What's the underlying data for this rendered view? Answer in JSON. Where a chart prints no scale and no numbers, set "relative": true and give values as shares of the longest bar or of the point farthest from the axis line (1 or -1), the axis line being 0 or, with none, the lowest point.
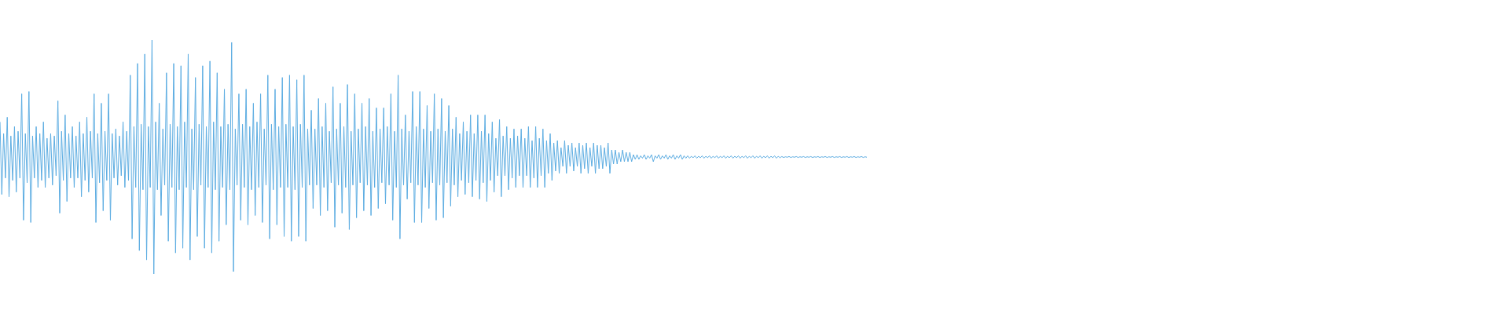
{
  "chart_data": {
    "type": "line",
    "relative": true,
    "color": "#5dade2",
    "categories": [
      null,
      null,
      null,
      null,
      null,
      null,
      null,
      null,
      null,
      null,
      null,
      null,
      null,
      null,
      null,
      null,
      null,
      null,
      null,
      null,
      null,
      null,
      null,
      null,
      null,
      null,
      null,
      null,
      null,
      null,
      null,
      null,
      null,
      null,
      null,
      null,
      null,
      null,
      null,
      null,
      null,
      null,
      null,
      null,
      null,
      null,
      null,
      null,
      null,
      null,
      null,
      null,
      null,
      null,
      null,
      null,
      null,
      null,
      null,
      null,
      null,
      null,
      null,
      null,
      null,
      null,
      null,
      null,
      null,
      null,
      null,
      null,
      null,
      null,
      null,
      null,
      null,
      null,
      null,
      null,
      null,
      null,
      null,
      null,
      null,
      null,
      null,
      null,
      null,
      null,
      null,
      null,
      null,
      null,
      null,
      null,
      null,
      null,
      null,
      null,
      null,
      null,
      null,
      null,
      null,
      null,
      null,
      null,
      null,
      null,
      null,
      null,
      null,
      null,
      null,
      null,
      null,
      null,
      null,
      null,
      null,
      null,
      null,
      null,
      null,
      null,
      null,
      null,
      null,
      null,
      null,
      null,
      null,
      null,
      null,
      null,
      null,
      null,
      null,
      null,
      null,
      null,
      null,
      null,
      null,
      null,
      null,
      null,
      null,
      null,
      null,
      null,
      null,
      null,
      null,
      null,
      null,
      null,
      null,
      null,
      null,
      null,
      null,
      null,
      null,
      null,
      null,
      null,
      null,
      null,
      null,
      null,
      null,
      null,
      null,
      null,
      null,
      null,
      null,
      null,
      null,
      null,
      null,
      null,
      null,
      null,
      null,
      null,
      null,
      null,
      null,
      null,
      null,
      null,
      null,
      null,
      null,
      null,
      null,
      null,
      null,
      null,
      null,
      null,
      null,
      null,
      null,
      null,
      null,
      null,
      null,
      null,
      null,
      null,
      null,
      null,
      null,
      null,
      null,
      null,
      null,
      null,
      null,
      null,
      null,
      null,
      null,
      null,
      null,
      null,
      null,
      null,
      null,
      null,
      null,
      null,
      null,
      null,
      null,
      null,
      null,
      null,
      null,
      null,
      null,
      null,
      null,
      null,
      null,
      null,
      null,
      null,
      null,
      null,
      null,
      null,
      null,
      null,
      null,
      null,
      null,
      null,
      null,
      null,
      null,
      null,
      null,
      null,
      null,
      null,
      null,
      null,
      null,
      null,
      null,
      null,
      null,
      null,
      null,
      null,
      null,
      null,
      null,
      null,
      null,
      null,
      null,
      null,
      null,
      null,
      null,
      null,
      null,
      null,
      null,
      null,
      null,
      null,
      null,
      null,
      null,
      null,
      null,
      null,
      null,
      null,
      null,
      null,
      null,
      null,
      null,
      null,
      null,
      null,
      null,
      null,
      null,
      null,
      null,
      null,
      null,
      null,
      null,
      null,
      null,
      null,
      null,
      null,
      null,
      null,
      null,
      null,
      null,
      null,
      null,
      null,
      null,
      null,
      null,
      null,
      null,
      null,
      null,
      null,
      null,
      null,
      null,
      null,
      null,
      null,
      null,
      null,
      null,
      null,
      null,
      null,
      null,
      null,
      null,
      null,
      null,
      null,
      null,
      null,
      null,
      null,
      null,
      null,
      null,
      null,
      null,
      null,
      null,
      null,
      null,
      null,
      null,
      null,
      null,
      null,
      null,
      null,
      null,
      null,
      null,
      null,
      null,
      null,
      null,
      null,
      null,
      null,
      null,
      null,
      null,
      null,
      null,
      null,
      null,
      null,
      null,
      null,
      null,
      null,
      null,
      null,
      null,
      null,
      null,
      null,
      null,
      null,
      null,
      null,
      null,
      null,
      null,
      null,
      null,
      null,
      null,
      null,
      null,
      null,
      null,
      null,
      null,
      null,
      null,
      null,
      null,
      null,
      null,
      null,
      null,
      null,
      null,
      null,
      null,
      null,
      null,
      null,
      null,
      null,
      null,
      null,
      null,
      null,
      null,
      null,
      null,
      null,
      null,
      null,
      null,
      null,
      null,
      null,
      null,
      null,
      null,
      null,
      null,
      null,
      null,
      null,
      null,
      null,
      null,
      null,
      null,
      null,
      null,
      null,
      null,
      null,
      null,
      null,
      null,
      null
    ],
    "values": [
      0.65,
      0.34,
      0.6,
      0.41,
      0.67,
      0.33,
      0.59,
      0.4,
      0.63,
      0.35,
      0.61,
      0.41,
      0.77,
      0.23,
      0.6,
      0.39,
      0.78,
      0.22,
      0.59,
      0.41,
      0.63,
      0.37,
      0.6,
      0.4,
      0.65,
      0.37,
      0.58,
      0.41,
      0.6,
      0.38,
      0.59,
      0.42,
      0.74,
      0.26,
      0.61,
      0.4,
      0.68,
      0.31,
      0.6,
      0.41,
      0.63,
      0.37,
      0.59,
      0.41,
      0.65,
      0.33,
      0.6,
      0.4,
      0.67,
      0.35,
      0.61,
      0.41,
      0.77,
      0.22,
      0.6,
      0.39,
      0.73,
      0.27,
      0.61,
      0.4,
      0.77,
      0.23,
      0.6,
      0.41,
      0.62,
      0.38,
      0.59,
      0.42,
      0.65,
      0.37,
      0.61,
      0.4,
      0.85,
      0.15,
      0.63,
      0.37,
      0.9,
      0.1,
      0.64,
      0.36,
      0.94,
      0.06,
      0.63,
      0.37,
      1.0,
      0.0,
      0.65,
      0.36,
      0.73,
      0.25,
      0.62,
      0.38,
      0.86,
      0.14,
      0.64,
      0.37,
      0.9,
      0.09,
      0.63,
      0.36,
      0.89,
      0.11,
      0.65,
      0.37,
      0.94,
      0.06,
      0.62,
      0.36,
      0.84,
      0.16,
      0.64,
      0.38,
      0.89,
      0.11,
      0.63,
      0.37,
      0.91,
      0.09,
      0.65,
      0.36,
      0.86,
      0.14,
      0.63,
      0.37,
      0.79,
      0.21,
      0.64,
      0.36,
      0.99,
      0.01,
      0.62,
      0.38,
      0.77,
      0.23,
      0.64,
      0.37,
      0.79,
      0.21,
      0.63,
      0.36,
      0.73,
      0.25,
      0.65,
      0.37,
      0.77,
      0.22,
      0.62,
      0.38,
      0.85,
      0.15,
      0.64,
      0.36,
      0.79,
      0.21,
      0.63,
      0.37,
      0.84,
      0.16,
      0.64,
      0.37,
      0.85,
      0.14,
      0.63,
      0.36,
      0.83,
      0.16,
      0.64,
      0.37,
      0.85,
      0.14,
      0.62,
      0.38,
      0.7,
      0.28,
      0.62,
      0.38,
      0.75,
      0.25,
      0.63,
      0.37,
      0.73,
      0.27,
      0.61,
      0.39,
      0.8,
      0.2,
      0.62,
      0.38,
      0.73,
      0.26,
      0.63,
      0.37,
      0.81,
      0.19,
      0.61,
      0.38,
      0.77,
      0.24,
      0.62,
      0.39,
      0.73,
      0.27,
      0.63,
      0.38,
      0.75,
      0.25,
      0.61,
      0.37,
      0.71,
      0.28,
      0.62,
      0.39,
      0.71,
      0.3,
      0.63,
      0.38,
      0.77,
      0.23,
      0.61,
      0.37,
      0.85,
      0.15,
      0.62,
      0.38,
      0.68,
      0.32,
      0.61,
      0.39,
      0.78,
      0.22,
      0.63,
      0.38,
      0.78,
      0.22,
      0.62,
      0.37,
      0.72,
      0.28,
      0.61,
      0.39,
      0.77,
      0.23,
      0.62,
      0.38,
      0.75,
      0.24,
      0.61,
      0.39,
      0.72,
      0.29,
      0.62,
      0.38,
      0.67,
      0.33,
      0.6,
      0.4,
      0.65,
      0.34,
      0.61,
      0.39,
      0.68,
      0.33,
      0.6,
      0.4,
      0.68,
      0.32,
      0.61,
      0.39,
      0.68,
      0.31,
      0.6,
      0.4,
      0.65,
      0.35,
      0.58,
      0.42,
      0.66,
      0.33,
      0.59,
      0.42,
      0.63,
      0.36,
      0.58,
      0.41,
      0.62,
      0.37,
      0.59,
      0.42,
      0.62,
      0.37,
      0.58,
      0.42,
      0.63,
      0.37,
      0.57,
      0.41,
      0.63,
      0.37,
      0.58,
      0.42,
      0.62,
      0.37,
      0.57,
      0.43,
      0.6,
      0.4,
      0.56,
      0.44,
      0.57,
      0.43,
      0.54,
      0.46,
      0.57,
      0.43,
      0.55,
      0.46,
      0.56,
      0.44,
      0.54,
      0.46,
      0.56,
      0.43,
      0.55,
      0.45,
      0.56,
      0.43,
      0.54,
      0.46,
      0.56,
      0.43,
      0.55,
      0.45,
      0.55,
      0.45,
      0.54,
      0.46,
      0.56,
      0.43,
      0.53,
      0.47,
      0.53,
      0.47,
      0.52,
      0.48,
      0.53,
      0.48,
      0.52,
      0.48,
      0.52,
      0.48,
      0.51,
      0.49,
      0.51,
      0.49,
      0.505,
      0.495,
      0.51,
      0.49,
      0.505,
      0.495,
      0.51,
      0.48,
      0.505,
      0.495,
      0.51,
      0.49,
      0.505,
      0.495,
      0.51,
      0.49,
      0.505,
      0.495,
      0.51,
      0.49,
      0.505,
      0.495,
      0.51,
      0.49,
      0.505,
      0.495,
      0.505,
      0.495,
      0.503,
      0.497,
      0.505,
      0.495,
      0.503,
      0.497,
      0.505,
      0.495,
      0.503,
      0.497,
      0.505,
      0.495,
      0.503,
      0.497,
      0.505,
      0.495,
      0.503,
      0.497,
      0.505,
      0.495,
      0.503,
      0.497,
      0.505,
      0.495,
      0.503,
      0.497,
      0.505,
      0.495,
      0.503,
      0.497,
      0.505,
      0.495,
      0.503,
      0.497,
      0.505,
      0.495,
      0.503,
      0.497,
      0.505,
      0.495,
      0.503,
      0.497,
      0.505,
      0.495,
      0.503,
      0.497,
      0.505,
      0.495,
      0.503,
      0.497,
      0.502,
      0.498,
      0.501,
      0.499,
      0.502,
      0.498,
      0.501,
      0.499,
      0.502,
      0.498,
      0.501,
      0.499,
      0.502,
      0.498,
      0.501,
      0.499,
      0.502,
      0.498,
      0.501,
      0.499,
      0.502,
      0.498,
      0.501,
      0.499,
      0.502,
      0.498,
      0.501,
      0.499,
      0.502,
      0.498,
      0.501,
      0.499,
      0.502,
      0.498,
      0.501,
      0.499,
      0.502,
      0.498,
      0.501,
      0.499,
      0.502,
      0.498,
      0.501,
      0.499,
      0.502,
      0.498,
      0.501,
      0.499
    ]
  }
}
